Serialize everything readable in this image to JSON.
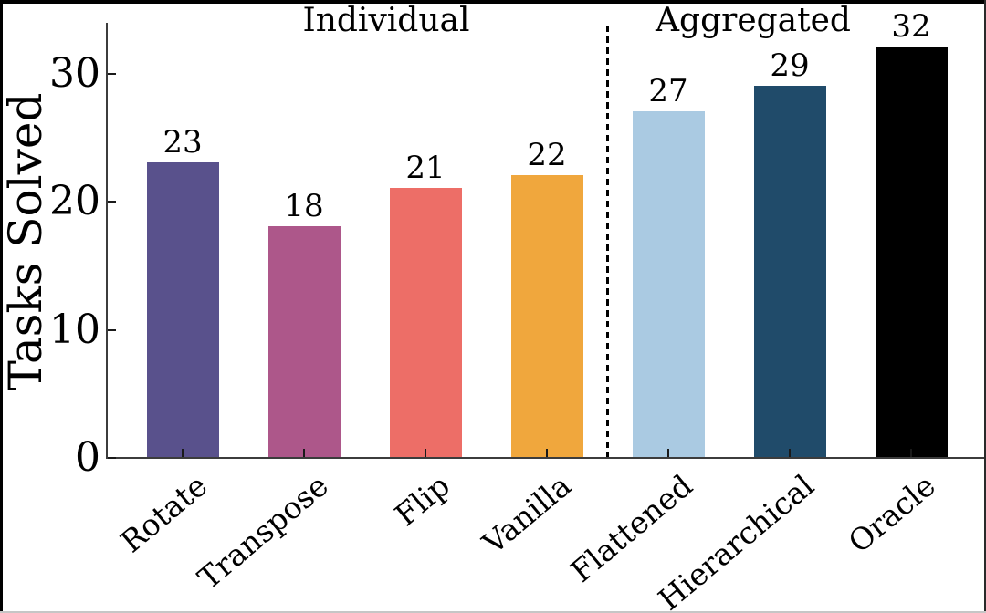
{
  "chart_data": {
    "type": "bar",
    "title": "",
    "xlabel": "",
    "ylabel": "Tasks Solved",
    "categories": [
      "Rotate",
      "Transpose",
      "Flip",
      "Vanilla",
      "Flattened",
      "Hierarchical",
      "Oracle"
    ],
    "values": [
      23,
      18,
      21,
      22,
      27,
      29,
      32
    ],
    "bar_value_labels": [
      "23",
      "18",
      "21",
      "22",
      "27",
      "29",
      "32"
    ],
    "bar_colors": [
      "#59518c",
      "#ad578a",
      "#ed6e67",
      "#f0a73d",
      "#aacae2",
      "#204b6a",
      "#000000"
    ],
    "yticks": [
      0,
      10,
      20,
      30
    ],
    "ylim": [
      0,
      34
    ],
    "grid": false,
    "legend": "none",
    "tick_direction": "in",
    "groups": [
      {
        "label": "Individual",
        "members": [
          "Rotate",
          "Transpose",
          "Flip",
          "Vanilla"
        ]
      },
      {
        "label": "Aggregated",
        "members": [
          "Flattened",
          "Hierarchical",
          "Oracle"
        ]
      }
    ],
    "separator": {
      "style": "dashed",
      "orientation": "vertical",
      "between": [
        "Vanilla",
        "Flattened"
      ]
    },
    "colors": {
      "axis": "#3c3c3c",
      "text": "#000000",
      "background": "#ffffff"
    }
  }
}
